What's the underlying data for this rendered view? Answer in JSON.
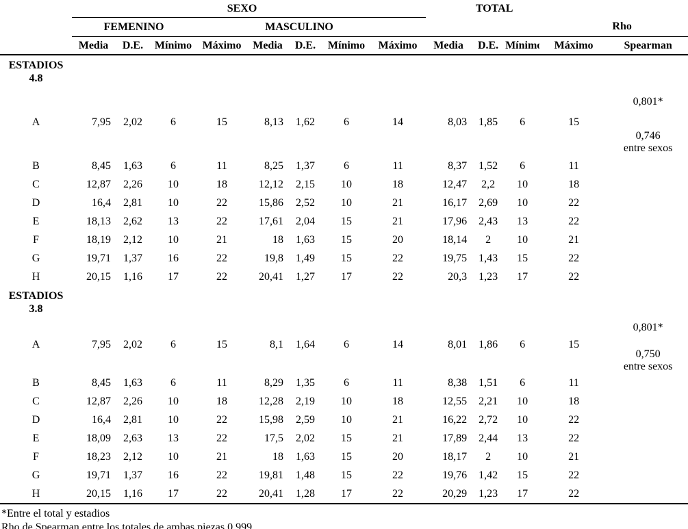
{
  "table": {
    "header": {
      "sexo_label": "SEXO",
      "total_label": "TOTAL",
      "femenino_label": "FEMENINO",
      "masculino_label": "MASCULINO",
      "rho_label": "Rho",
      "spearman_label": "Spearman",
      "stat_cols": [
        "Media",
        "D.E.",
        "Mínimo",
        "Máximo"
      ]
    },
    "sections": [
      {
        "title_line1": "ESTADIOS",
        "title_line2": "4.8",
        "rho": {
          "top": "0,801*",
          "mid": "0,746",
          "bottom": "entre sexos"
        },
        "rows": [
          {
            "label": "A",
            "femenino": [
              "7,95",
              "2,02",
              "6",
              "15"
            ],
            "masculino": [
              "8,13",
              "1,62",
              "6",
              "14"
            ],
            "total": [
              "8,03",
              "1,85",
              "6",
              "15"
            ]
          },
          {
            "label": "B",
            "femenino": [
              "8,45",
              "1,63",
              "6",
              "11"
            ],
            "masculino": [
              "8,25",
              "1,37",
              "6",
              "11"
            ],
            "total": [
              "8,37",
              "1,52",
              "6",
              "11"
            ]
          },
          {
            "label": "C",
            "femenino": [
              "12,87",
              "2,26",
              "10",
              "18"
            ],
            "masculino": [
              "12,12",
              "2,15",
              "10",
              "18"
            ],
            "total": [
              "12,47",
              "2,2",
              "10",
              "18"
            ]
          },
          {
            "label": "D",
            "femenino": [
              "16,4",
              "2,81",
              "10",
              "22"
            ],
            "masculino": [
              "15,86",
              "2,52",
              "10",
              "21"
            ],
            "total": [
              "16,17",
              "2,69",
              "10",
              "22"
            ]
          },
          {
            "label": "E",
            "femenino": [
              "18,13",
              "2,62",
              "13",
              "22"
            ],
            "masculino": [
              "17,61",
              "2,04",
              "15",
              "21"
            ],
            "total": [
              "17,96",
              "2,43",
              "13",
              "22"
            ]
          },
          {
            "label": "F",
            "femenino": [
              "18,19",
              "2,12",
              "10",
              "21"
            ],
            "masculino": [
              "18",
              "1,63",
              "15",
              "20"
            ],
            "total": [
              "18,14",
              "2",
              "10",
              "21"
            ]
          },
          {
            "label": "G",
            "femenino": [
              "19,71",
              "1,37",
              "16",
              "22"
            ],
            "masculino": [
              "19,8",
              "1,49",
              "15",
              "22"
            ],
            "total": [
              "19,75",
              "1,43",
              "15",
              "22"
            ]
          },
          {
            "label": "H",
            "femenino": [
              "20,15",
              "1,16",
              "17",
              "22"
            ],
            "masculino": [
              "20,41",
              "1,27",
              "17",
              "22"
            ],
            "total": [
              "20,3",
              "1,23",
              "17",
              "22"
            ]
          }
        ]
      },
      {
        "title_line1": "ESTADIOS",
        "title_line2": "3.8",
        "rho": {
          "top": "0,801*",
          "mid": "0,750",
          "bottom": "entre sexos"
        },
        "rows": [
          {
            "label": "A",
            "femenino": [
              "7,95",
              "2,02",
              "6",
              "15"
            ],
            "masculino": [
              "8,1",
              "1,64",
              "6",
              "14"
            ],
            "total": [
              "8,01",
              "1,86",
              "6",
              "15"
            ]
          },
          {
            "label": "B",
            "femenino": [
              "8,45",
              "1,63",
              "6",
              "11"
            ],
            "masculino": [
              "8,29",
              "1,35",
              "6",
              "11"
            ],
            "total": [
              "8,38",
              "1,51",
              "6",
              "11"
            ]
          },
          {
            "label": "C",
            "femenino": [
              "12,87",
              "2,26",
              "10",
              "18"
            ],
            "masculino": [
              "12,28",
              "2,19",
              "10",
              "18"
            ],
            "total": [
              "12,55",
              "2,21",
              "10",
              "18"
            ]
          },
          {
            "label": "D",
            "femenino": [
              "16,4",
              "2,81",
              "10",
              "22"
            ],
            "masculino": [
              "15,98",
              "2,59",
              "10",
              "21"
            ],
            "total": [
              "16,22",
              "2,72",
              "10",
              "22"
            ]
          },
          {
            "label": "E",
            "femenino": [
              "18,09",
              "2,63",
              "13",
              "22"
            ],
            "masculino": [
              "17,5",
              "2,02",
              "15",
              "21"
            ],
            "total": [
              "17,89",
              "2,44",
              "13",
              "22"
            ]
          },
          {
            "label": "F",
            "femenino": [
              "18,23",
              "2,12",
              "10",
              "21"
            ],
            "masculino": [
              "18",
              "1,63",
              "15",
              "20"
            ],
            "total": [
              "18,17",
              "2",
              "10",
              "21"
            ]
          },
          {
            "label": "G",
            "femenino": [
              "19,71",
              "1,37",
              "16",
              "22"
            ],
            "masculino": [
              "19,81",
              "1,48",
              "15",
              "22"
            ],
            "total": [
              "19,76",
              "1,42",
              "15",
              "22"
            ]
          },
          {
            "label": "H",
            "femenino": [
              "20,15",
              "1,16",
              "17",
              "22"
            ],
            "masculino": [
              "20,41",
              "1,28",
              "17",
              "22"
            ],
            "total": [
              "20,29",
              "1,23",
              "17",
              "22"
            ]
          }
        ]
      }
    ],
    "footnotes": [
      "*Entre el total y estadios",
      "Rho de Spearman entre los totales de ambas piezas 0,999"
    ]
  }
}
